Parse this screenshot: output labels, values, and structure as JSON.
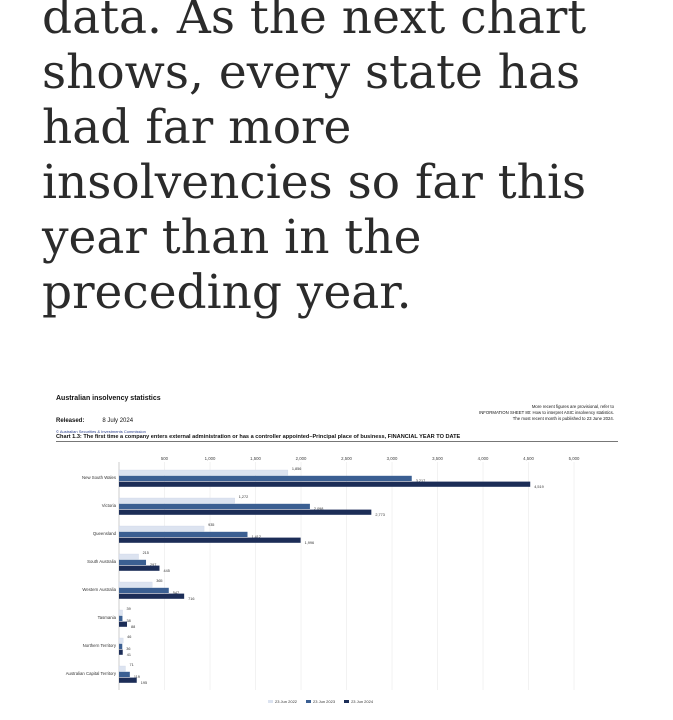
{
  "article": {
    "lines": [
      "data. As the next chart",
      "shows, every state has",
      "had far more",
      "insolvencies so far this",
      "year than in the",
      "preceding year."
    ]
  },
  "figure": {
    "title": "Australian insolvency statistics",
    "released_label": "Released:",
    "released_date": "8 July 2024",
    "commission": "© Australian Securities & Investments Commission",
    "note_lines": [
      "More recent figures are provisional, refer to",
      "INFORMATION SHEET 80: How to interpret ASIC insolvency statistics.",
      "The most recent month is published to 23 June 2024."
    ]
  },
  "chart_data": {
    "type": "bar",
    "orientation": "horizontal",
    "title": "Chart 1.3: The first time a company enters external administration or has a controller appointed–Principal place of business, FINANCIAL YEAR TO DATE",
    "categories": [
      "New South Wales",
      "Victoria",
      "Queensland",
      "South Australia",
      "Western Australia",
      "Tasmania",
      "Northern Territory",
      "Australian Capital Territory"
    ],
    "series": [
      {
        "name": "23 Jun 2022",
        "color": "#dce3f0",
        "values": [
          1856,
          1272,
          935,
          215,
          365,
          39,
          46,
          71
        ]
      },
      {
        "name": "23 Jun 2023",
        "color": "#3b5f92",
        "values": [
          3217,
          2098,
          1412,
          297,
          547,
          38,
          36,
          119
        ]
      },
      {
        "name": "23 Jun 2024",
        "color": "#1c2d57",
        "values": [
          4519,
          2773,
          1996,
          445,
          716,
          88,
          41,
          195
        ]
      }
    ],
    "xticks": [
      "500",
      "1,000",
      "1,500",
      "2,000",
      "2,500",
      "3,000",
      "3,500",
      "4,000",
      "4,500",
      "5,000"
    ],
    "xlim": [
      0,
      5000
    ],
    "grid": true,
    "legend": "bottom"
  }
}
